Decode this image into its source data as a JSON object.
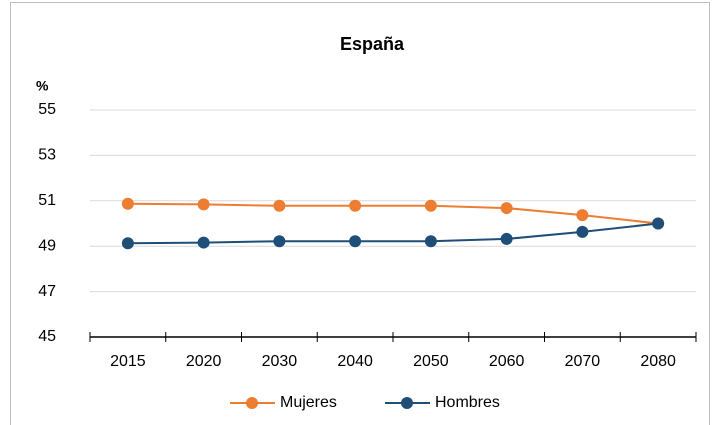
{
  "chart_data": {
    "type": "line",
    "title": "España",
    "y_label": "%",
    "categories": [
      "2015",
      "2020",
      "2030",
      "2040",
      "2050",
      "2060",
      "2070",
      "2080"
    ],
    "series": [
      {
        "name": "Mujeres",
        "color": "#ed7d31",
        "values": [
          50.87,
          50.84,
          50.78,
          50.78,
          50.78,
          50.68,
          50.37,
          50.0
        ]
      },
      {
        "name": "Hombres",
        "color": "#1f4e79",
        "values": [
          49.13,
          49.16,
          49.22,
          49.22,
          49.22,
          49.32,
          49.63,
          50.0
        ]
      }
    ],
    "ylim": [
      45,
      55
    ],
    "yticks": [
      45,
      47,
      49,
      51,
      53,
      55
    ],
    "grid": true,
    "legend": "bottom"
  }
}
